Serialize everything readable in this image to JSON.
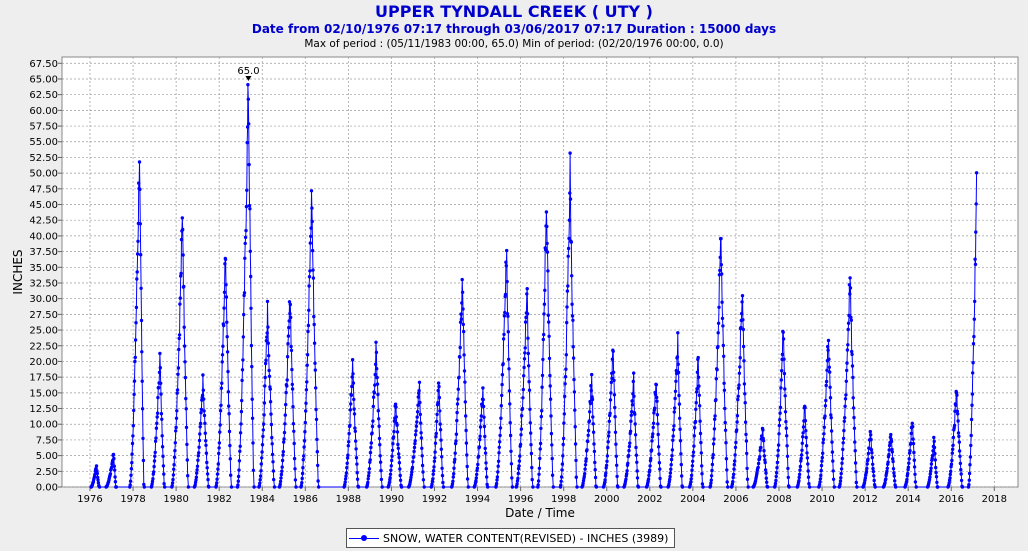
{
  "chart_data": {
    "type": "line",
    "title": "UPPER TYNDALL CREEK ( UTY )",
    "subtitle": "Date from 02/10/1976 07:17 through 03/06/2017 07:17 Duration : 15000 days",
    "subtitle2": "Max of period : (05/11/1983 00:00, 65.0)  Min of period: (02/20/1976 00:00,  0.0)",
    "xlabel": "Date / Time",
    "ylabel": "INCHES",
    "xlim": [
      1974.7,
      2019.1
    ],
    "ylim": [
      0,
      68.5
    ],
    "x_ticks": [
      "1976",
      "1978",
      "1980",
      "1982",
      "1984",
      "1986",
      "1988",
      "1990",
      "1992",
      "1994",
      "1996",
      "1998",
      "2000",
      "2002",
      "2004",
      "2006",
      "2008",
      "2010",
      "2012",
      "2014",
      "2016",
      "2018"
    ],
    "y_ticks": [
      "0.00",
      "2.50",
      "5.00",
      "7.50",
      "10.00",
      "12.50",
      "15.00",
      "17.50",
      "20.00",
      "22.50",
      "25.00",
      "27.50",
      "30.00",
      "32.50",
      "35.00",
      "37.50",
      "40.00",
      "42.50",
      "45.00",
      "47.50",
      "50.00",
      "52.50",
      "55.00",
      "57.50",
      "60.00",
      "62.50",
      "65.00",
      "67.50"
    ],
    "grid": true,
    "annotation": {
      "text": "65.0",
      "x": 1983.36,
      "y": 65.0
    },
    "series": [
      {
        "name": "SNOW, WATER CONTENT(REVISED) - INCHES (3989)",
        "color": "#0000ff",
        "peaks": [
          {
            "start": 1976.05,
            "peak": 1976.3,
            "end": 1976.42,
            "value": 3.5
          },
          {
            "start": 1976.75,
            "peak": 1977.1,
            "end": 1977.2,
            "value": 5.5
          },
          {
            "start": 1977.85,
            "peak": 1978.3,
            "end": 1978.5,
            "value": 53.5
          },
          {
            "start": 1978.85,
            "peak": 1979.25,
            "end": 1979.45,
            "value": 21.0
          },
          {
            "start": 1979.8,
            "peak": 1980.3,
            "end": 1980.55,
            "value": 44.0
          },
          {
            "start": 1980.85,
            "peak": 1981.25,
            "end": 1981.5,
            "value": 17.0
          },
          {
            "start": 1981.85,
            "peak": 1982.3,
            "end": 1982.55,
            "value": 38.5
          },
          {
            "start": 1982.85,
            "peak": 1983.36,
            "end": 1983.6,
            "value": 65.0
          },
          {
            "start": 1983.85,
            "peak": 1984.25,
            "end": 1984.55,
            "value": 28.5
          },
          {
            "start": 1984.8,
            "peak": 1985.3,
            "end": 1985.55,
            "value": 31.0
          },
          {
            "start": 1985.8,
            "peak": 1986.3,
            "end": 1986.6,
            "value": 47.5
          },
          {
            "start": 1987.8,
            "peak": 1988.2,
            "end": 1988.45,
            "value": 19.5
          },
          {
            "start": 1988.85,
            "peak": 1989.3,
            "end": 1989.55,
            "value": 23.0
          },
          {
            "start": 1989.85,
            "peak": 1990.2,
            "end": 1990.45,
            "value": 14.0
          },
          {
            "start": 1990.8,
            "peak": 1991.3,
            "end": 1991.5,
            "value": 17.0
          },
          {
            "start": 1991.85,
            "peak": 1992.2,
            "end": 1992.4,
            "value": 17.0
          },
          {
            "start": 1992.8,
            "peak": 1993.3,
            "end": 1993.55,
            "value": 34.0
          },
          {
            "start": 1993.85,
            "peak": 1994.25,
            "end": 1994.45,
            "value": 16.0
          },
          {
            "start": 1994.85,
            "peak": 1995.35,
            "end": 1995.6,
            "value": 38.0
          },
          {
            "start": 1995.8,
            "peak": 1996.3,
            "end": 1996.55,
            "value": 32.0
          },
          {
            "start": 1996.8,
            "peak": 1997.2,
            "end": 1997.5,
            "value": 46.5
          },
          {
            "start": 1997.85,
            "peak": 1998.3,
            "end": 1998.6,
            "value": 50.5
          },
          {
            "start": 1998.85,
            "peak": 1999.3,
            "end": 1999.5,
            "value": 17.5
          },
          {
            "start": 1999.85,
            "peak": 2000.3,
            "end": 2000.5,
            "value": 22.5
          },
          {
            "start": 2000.8,
            "peak": 2001.25,
            "end": 2001.45,
            "value": 17.0
          },
          {
            "start": 2001.85,
            "peak": 2002.3,
            "end": 2002.5,
            "value": 17.5
          },
          {
            "start": 2002.85,
            "peak": 2003.3,
            "end": 2003.5,
            "value": 23.0
          },
          {
            "start": 2003.85,
            "peak": 2004.25,
            "end": 2004.45,
            "value": 21.0
          },
          {
            "start": 2004.8,
            "peak": 2005.3,
            "end": 2005.6,
            "value": 40.0
          },
          {
            "start": 2005.8,
            "peak": 2006.3,
            "end": 2006.55,
            "value": 32.0
          },
          {
            "start": 2006.8,
            "peak": 2007.25,
            "end": 2007.45,
            "value": 9.5
          },
          {
            "start": 2007.8,
            "peak": 2008.2,
            "end": 2008.45,
            "value": 25.5
          },
          {
            "start": 2008.85,
            "peak": 2009.2,
            "end": 2009.4,
            "value": 13.5
          },
          {
            "start": 2009.85,
            "peak": 2010.3,
            "end": 2010.55,
            "value": 24.5
          },
          {
            "start": 2010.8,
            "peak": 2011.3,
            "end": 2011.6,
            "value": 34.0
          },
          {
            "start": 2011.9,
            "peak": 2012.25,
            "end": 2012.45,
            "value": 9.0
          },
          {
            "start": 2012.85,
            "peak": 2013.2,
            "end": 2013.4,
            "value": 9.0
          },
          {
            "start": 2013.85,
            "peak": 2014.2,
            "end": 2014.35,
            "value": 11.0
          },
          {
            "start": 2014.9,
            "peak": 2015.2,
            "end": 2015.35,
            "value": 8.0
          },
          {
            "start": 2015.85,
            "peak": 2016.25,
            "end": 2016.5,
            "value": 16.0
          },
          {
            "start": 2016.8,
            "peak": 2017.18,
            "end": 2017.18,
            "value": 49.0
          }
        ]
      }
    ]
  },
  "legend": {
    "label": "SNOW, WATER CONTENT(REVISED) - INCHES (3989)"
  }
}
